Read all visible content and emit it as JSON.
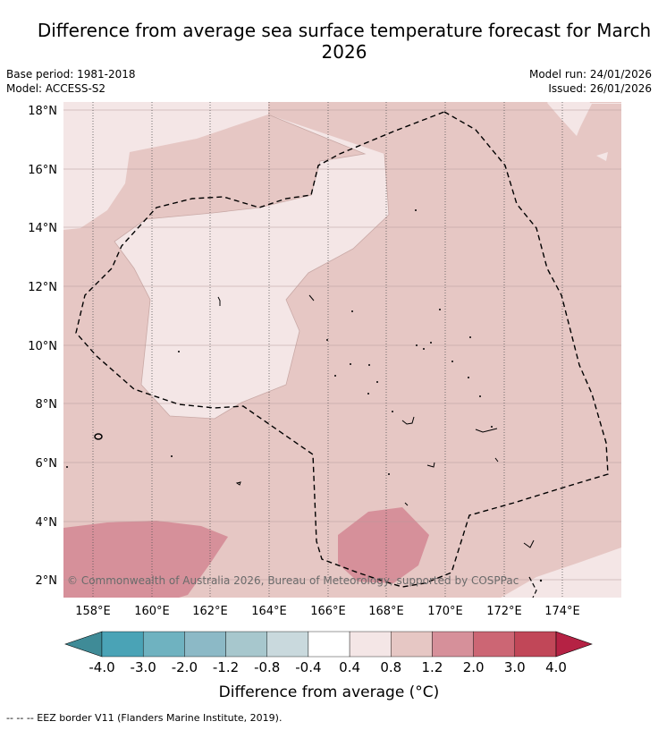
{
  "title": "Difference from average sea surface temperature forecast for March 2026",
  "base_period": "Base period: 1981-2018",
  "model": "Model: ACCESS-S2",
  "model_run": "Model run: 24/01/2026",
  "issued": "Issued: 26/01/2026",
  "copyright": "© Commonwealth of Australia 2026, Bureau of Meteorology, supported by COSPPac",
  "lon_ticks": [
    "158°E",
    "160°E",
    "162°E",
    "164°E",
    "166°E",
    "168°E",
    "170°E",
    "172°E",
    "174°E"
  ],
  "lat_ticks": [
    "18°N",
    "16°N",
    "14°N",
    "12°N",
    "10°N",
    "8°N",
    "6°N",
    "4°N",
    "2°N"
  ],
  "colorbar": {
    "label": "Difference from average (°C)",
    "ticks": [
      "-4.0",
      "-3.0",
      "-2.0",
      "-1.2",
      "-0.8",
      "-0.4",
      "0.4",
      "0.8",
      "1.2",
      "2.0",
      "3.0",
      "4.0"
    ],
    "colors": [
      "#3f8b97",
      "#4aa3b6",
      "#6fb2c0",
      "#8cb9c6",
      "#a7c7cd",
      "#c9d9dd",
      "#ffffff",
      "#f4e6e6",
      "#e6c7c4",
      "#d6909a",
      "#cc6674",
      "#c14758",
      "#b52244"
    ]
  },
  "legend_note": "--  --  -- EEZ border V11 (Flanders Marine Institute, 2019)."
}
